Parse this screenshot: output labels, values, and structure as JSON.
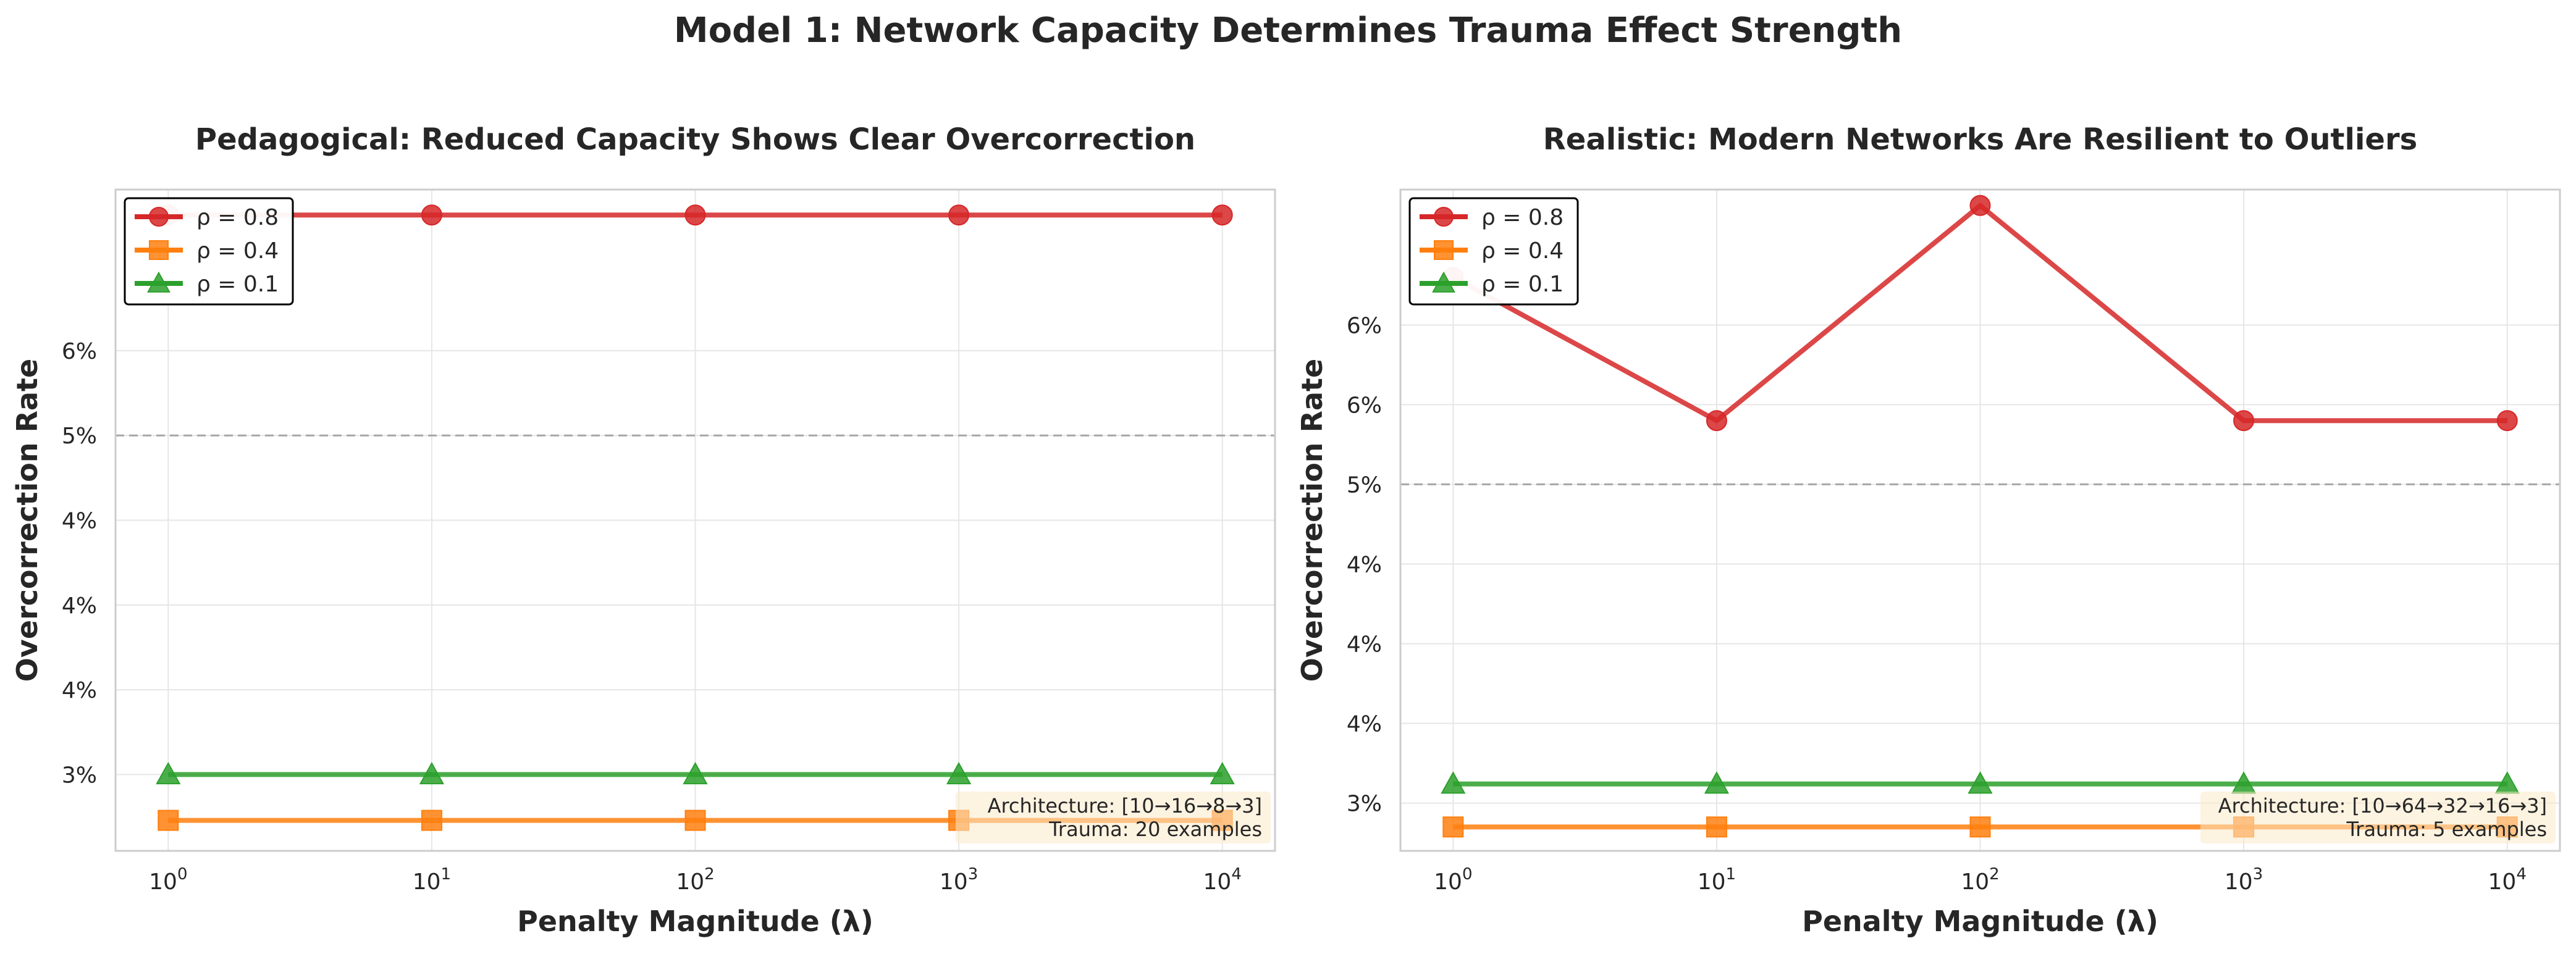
{
  "figure": {
    "title": "Model 1: Network Capacity Determines Trauma Effect Strength"
  },
  "chart_data": [
    {
      "type": "line",
      "title": "Pedagogical: Reduced Capacity Shows Clear Overcorrection",
      "xlabel": "Penalty Magnitude (λ)",
      "ylabel": "Overcorrection Rate",
      "x": [
        1,
        10,
        100,
        1000,
        10000
      ],
      "x_scale": "log",
      "xticks": [
        {
          "base": "10",
          "exp": "0"
        },
        {
          "base": "10",
          "exp": "1"
        },
        {
          "base": "10",
          "exp": "2"
        },
        {
          "base": "10",
          "exp": "3"
        },
        {
          "base": "10",
          "exp": "4"
        }
      ],
      "ylim": [
        2.55,
        6.45
      ],
      "yticks": [
        {
          "value": 3.0,
          "label": "3%"
        },
        {
          "value": 3.5,
          "label": "4%"
        },
        {
          "value": 4.0,
          "label": "4%"
        },
        {
          "value": 4.5,
          "label": "4%"
        },
        {
          "value": 5.0,
          "label": "5%"
        },
        {
          "value": 5.5,
          "label": "6%"
        }
      ],
      "reference_line": 5.0,
      "grid": true,
      "legend_position": "top-left",
      "series": [
        {
          "name": "ρ = 0.8",
          "values": [
            6.3,
            6.3,
            6.3,
            6.3,
            6.3
          ],
          "color": "#d62728",
          "marker": "circle"
        },
        {
          "name": "ρ = 0.4",
          "values": [
            2.73,
            2.73,
            2.73,
            2.73,
            2.73
          ],
          "color": "#ff7f0e",
          "marker": "square"
        },
        {
          "name": "ρ = 0.1",
          "values": [
            3.0,
            3.0,
            3.0,
            3.0,
            3.0
          ],
          "color": "#2ca02c",
          "marker": "triangle"
        }
      ],
      "annotation": [
        "Architecture: [10→16→8→3]",
        "Trauma: 20 examples"
      ]
    },
    {
      "type": "line",
      "title": "Realistic: Modern Networks Are Resilient to Outliers",
      "xlabel": "Penalty Magnitude (λ)",
      "ylabel": "Overcorrection Rate",
      "x": [
        1,
        10,
        100,
        1000,
        10000
      ],
      "x_scale": "log",
      "xticks": [
        {
          "base": "10",
          "exp": "0"
        },
        {
          "base": "10",
          "exp": "1"
        },
        {
          "base": "10",
          "exp": "2"
        },
        {
          "base": "10",
          "exp": "3"
        },
        {
          "base": "10",
          "exp": "4"
        }
      ],
      "ylim": [
        2.7,
        6.85
      ],
      "yticks": [
        {
          "value": 3.0,
          "label": "3%"
        },
        {
          "value": 3.5,
          "label": "4%"
        },
        {
          "value": 4.0,
          "label": "4%"
        },
        {
          "value": 4.5,
          "label": "4%"
        },
        {
          "value": 5.0,
          "label": "5%"
        },
        {
          "value": 5.5,
          "label": "6%"
        },
        {
          "value": 6.0,
          "label": "6%"
        }
      ],
      "reference_line": 5.0,
      "grid": true,
      "legend_position": "top-left",
      "series": [
        {
          "name": "ρ = 0.8",
          "values": [
            6.3,
            5.4,
            6.75,
            5.4,
            5.4
          ],
          "color": "#d62728",
          "marker": "circle"
        },
        {
          "name": "ρ = 0.4",
          "values": [
            2.85,
            2.85,
            2.85,
            2.85,
            2.85
          ],
          "color": "#ff7f0e",
          "marker": "square"
        },
        {
          "name": "ρ = 0.1",
          "values": [
            3.12,
            3.12,
            3.12,
            3.12,
            3.12
          ],
          "color": "#2ca02c",
          "marker": "triangle"
        }
      ],
      "annotation": [
        "Architecture: [10→64→32→16→3]",
        "Trauma: 5 examples"
      ]
    }
  ]
}
